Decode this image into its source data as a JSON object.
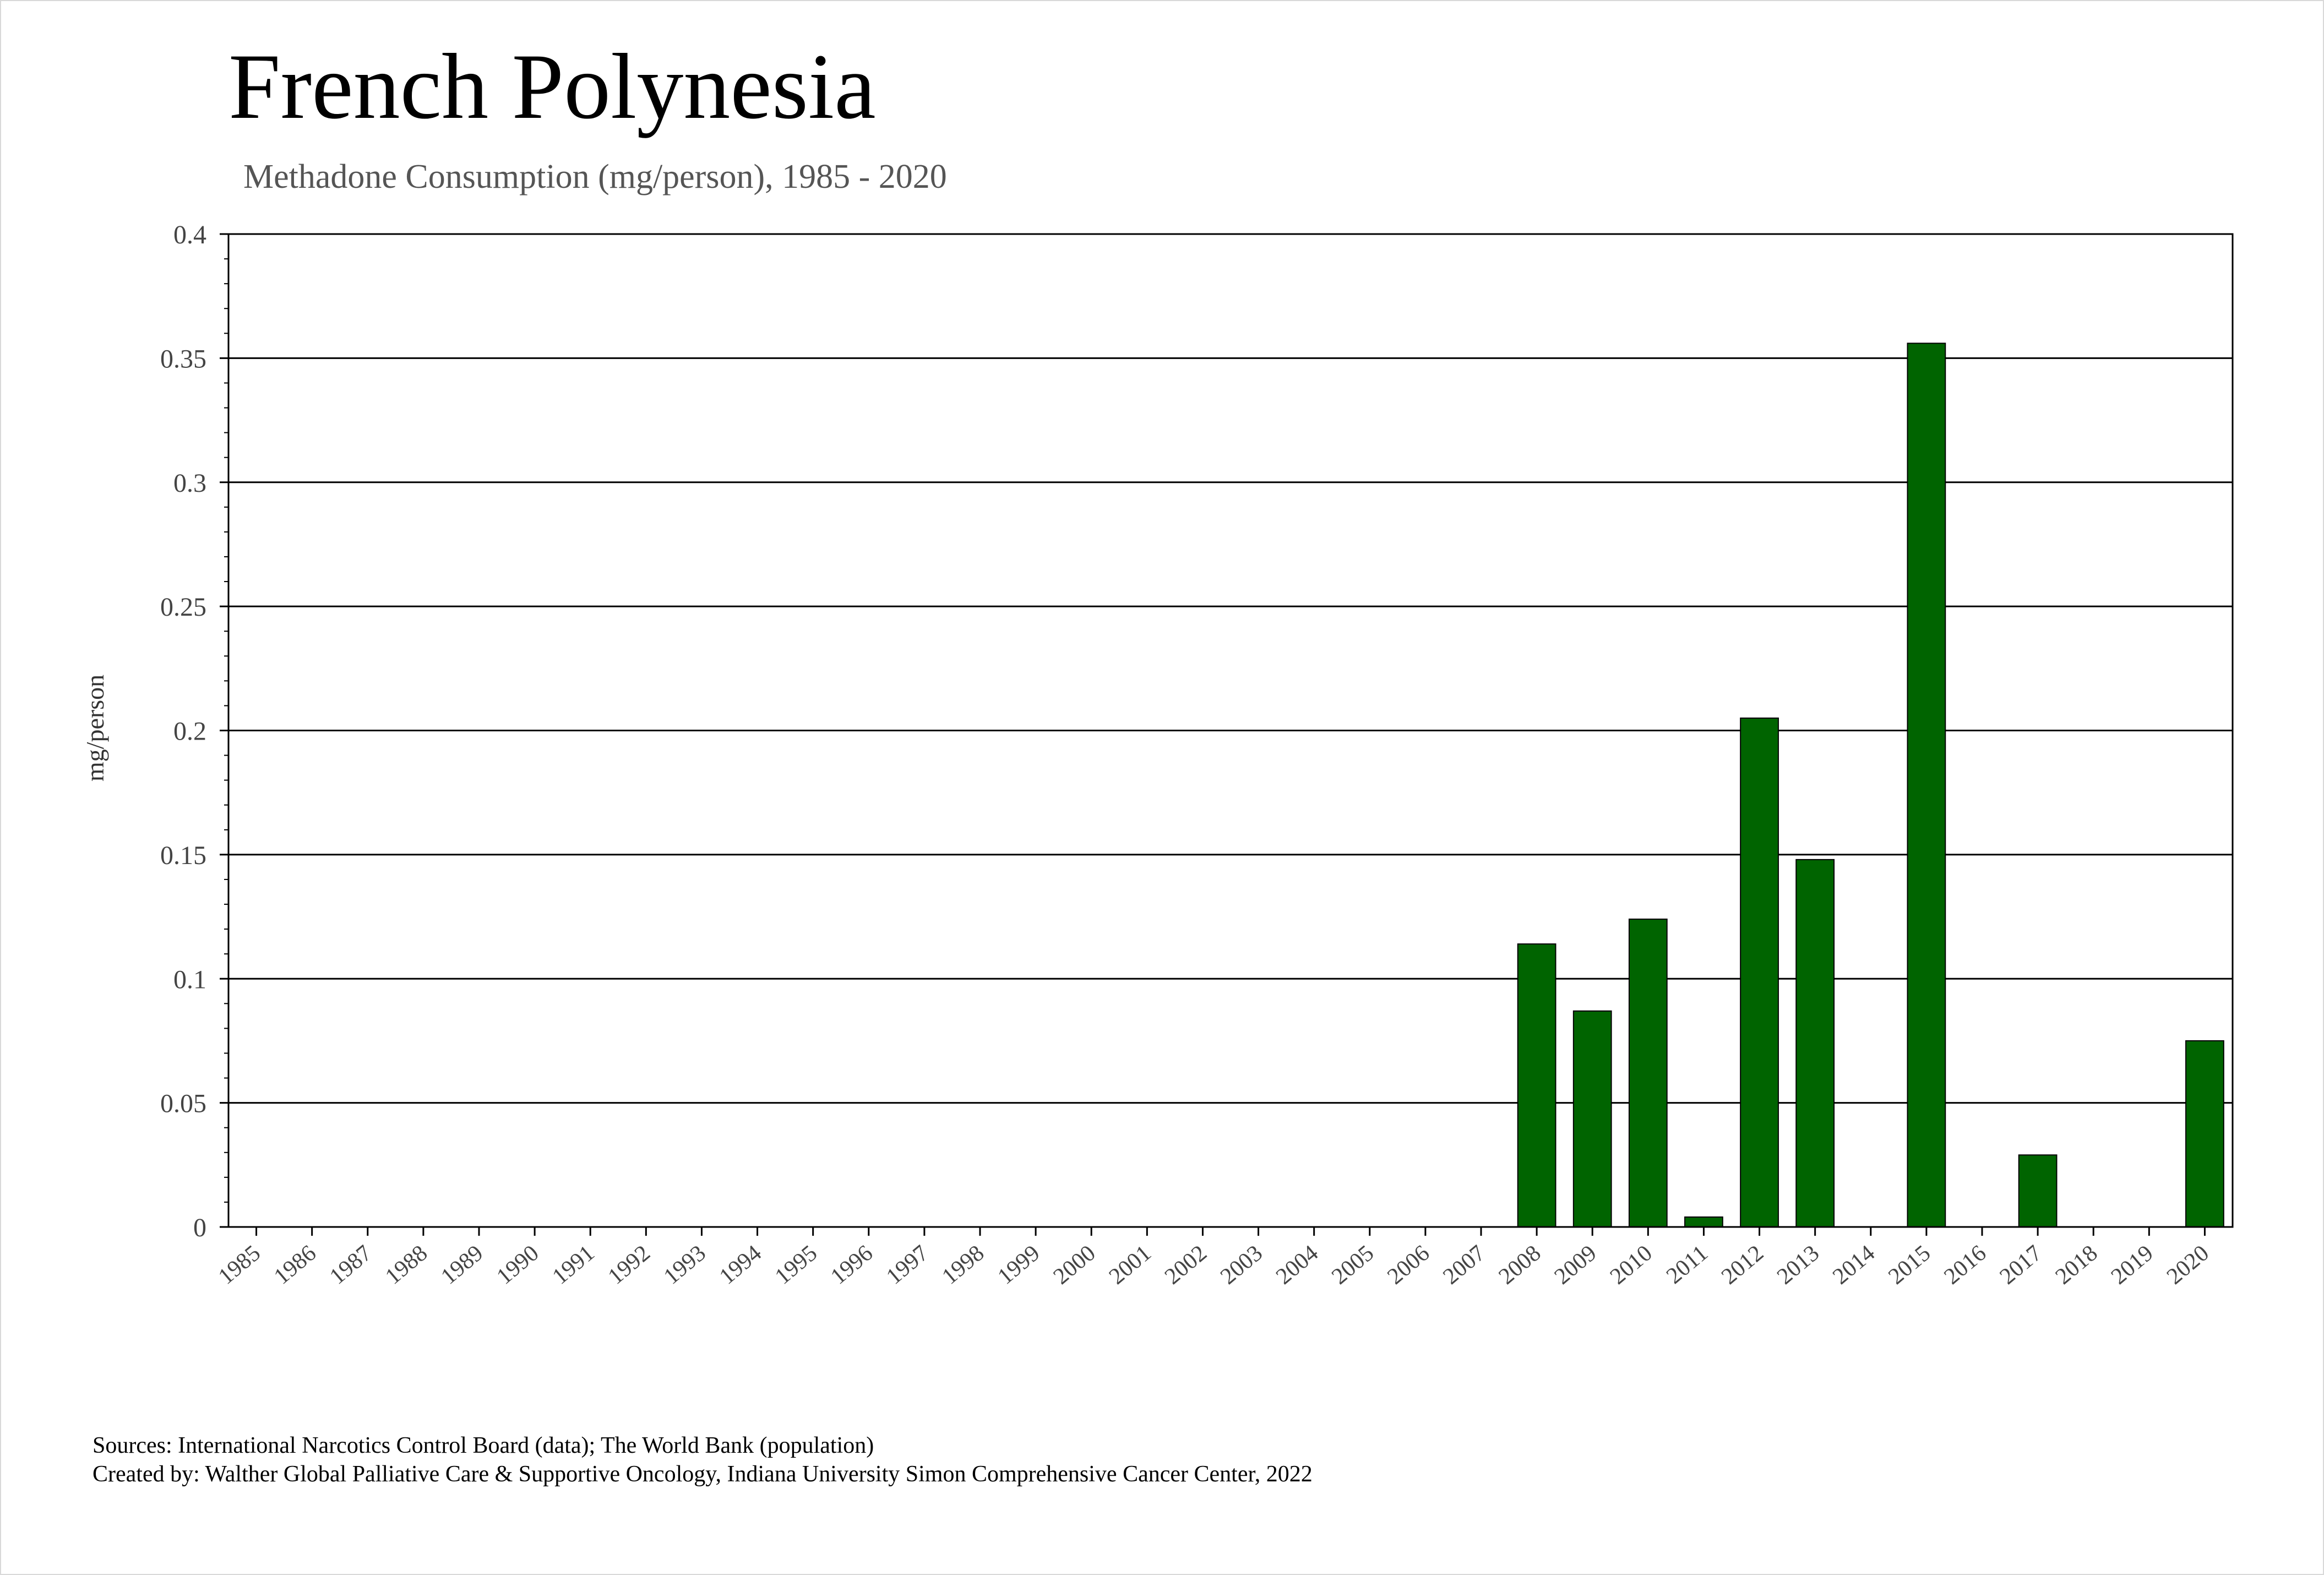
{
  "title": "French Polynesia",
  "subtitle": "Methadone Consumption (mg/person), 1985 - 2020",
  "footer": {
    "sources": "Sources: International Narcotics Control Board (data); The World Bank (population)",
    "created_by": "Created by: Walther Global Palliative Care & Supportive Oncology, Indiana University Simon Comprehensive Cancer Center, 2022"
  },
  "colors": {
    "bar": "#006400",
    "grid": "#000000",
    "tick_text": "#444444"
  },
  "chart_data": {
    "type": "bar",
    "title": "French Polynesia",
    "subtitle": "Methadone Consumption (mg/person), 1985 - 2020",
    "xlabel": "",
    "ylabel": "mg/person",
    "ylim": [
      0,
      0.4
    ],
    "yticks": [
      0,
      0.05,
      0.1,
      0.15,
      0.2,
      0.25,
      0.3,
      0.35,
      0.4
    ],
    "ytick_labels": [
      "0",
      "0.05",
      "0.1",
      "0.15",
      "0.2",
      "0.25",
      "0.3",
      "0.35",
      "0.4"
    ],
    "grid": true,
    "legend": "none",
    "categories": [
      "1985",
      "1986",
      "1987",
      "1988",
      "1989",
      "1990",
      "1991",
      "1992",
      "1993",
      "1994",
      "1995",
      "1996",
      "1997",
      "1998",
      "1999",
      "2000",
      "2001",
      "2002",
      "2003",
      "2004",
      "2005",
      "2006",
      "2007",
      "2008",
      "2009",
      "2010",
      "2011",
      "2012",
      "2013",
      "2014",
      "2015",
      "2016",
      "2017",
      "2018",
      "2019",
      "2020"
    ],
    "values": [
      0,
      0,
      0,
      0,
      0,
      0,
      0,
      0,
      0,
      0,
      0,
      0,
      0,
      0,
      0,
      0,
      0,
      0,
      0,
      0,
      0,
      0,
      0,
      0.114,
      0.087,
      0.124,
      0.004,
      0.205,
      0.148,
      0,
      0.356,
      0,
      0.029,
      0,
      0,
      0.075
    ]
  }
}
